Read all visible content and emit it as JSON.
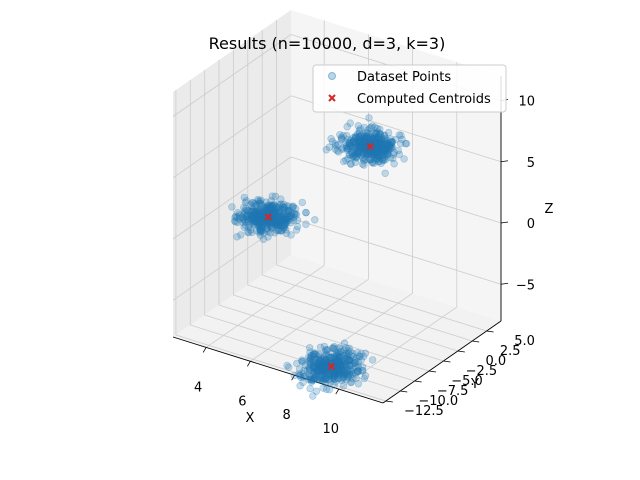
{
  "chart_data": {
    "type": "scatter",
    "projection": "3d",
    "title": "Results (n=10000, d=3, k=3)",
    "xlabel": "X",
    "ylabel": "Y",
    "zlabel": "Z",
    "xlim": [
      2.5,
      12.0
    ],
    "ylim": [
      -13.0,
      7.5
    ],
    "zlim": [
      -8.0,
      12.0
    ],
    "xticks": [
      4,
      6,
      8,
      10
    ],
    "yticks": [
      -12.5,
      -10.0,
      -7.5,
      -5.0,
      -2.5,
      0.0,
      2.5,
      5.0
    ],
    "zticks": [
      -5,
      0,
      5,
      10
    ],
    "xtick_labels": [
      "4",
      "6",
      "8",
      "10"
    ],
    "ytick_labels": [
      "−12.5",
      "−10.0",
      "−7.5",
      "−5.0",
      "−2.5",
      "0.0",
      "2.5",
      "5.0"
    ],
    "ztick_labels": [
      "−5",
      "0",
      "5",
      "10"
    ],
    "grid": true,
    "legend_position": "top-right",
    "series": [
      {
        "name": "Dataset Points",
        "marker": "circle",
        "color": "#1f77b4",
        "alpha": 0.25,
        "n_points": 10000,
        "clusters": [
          {
            "center": [
              4.7,
              -4.9,
              0.4
            ],
            "spread": [
              0.55,
              1.3,
              0.35
            ]
          },
          {
            "center": [
              9.6,
              -6.0,
              9.3
            ],
            "spread": [
              0.55,
              1.4,
              0.35
            ]
          },
          {
            "center": [
              9.3,
              -11.6,
              -7.0
            ],
            "spread": [
              0.55,
              1.6,
              0.35
            ]
          }
        ]
      },
      {
        "name": "Computed Centroids",
        "marker": "x",
        "color": "#d62728",
        "points": [
          [
            4.7,
            -4.9,
            0.4
          ],
          [
            9.6,
            -6.0,
            9.3
          ],
          [
            9.3,
            -11.6,
            -7.0
          ]
        ]
      }
    ]
  }
}
